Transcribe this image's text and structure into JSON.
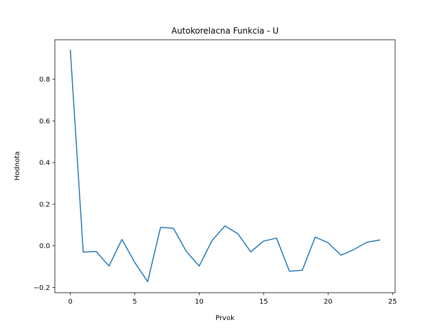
{
  "chart_data": {
    "type": "line",
    "title": "Autokorelacna Funkcia - U",
    "xlabel": "Prvok",
    "ylabel": "Hodnota",
    "xlim": [
      -1.2,
      25.2
    ],
    "ylim": [
      -0.225,
      0.99
    ],
    "xticks": [
      0,
      5,
      10,
      15,
      20,
      25
    ],
    "yticks": [
      -0.2,
      0.0,
      0.2,
      0.4,
      0.6,
      0.8
    ],
    "xtick_labels": [
      "0",
      "5",
      "10",
      "15",
      "20",
      "25"
    ],
    "ytick_labels": [
      "−0.2",
      "0.0",
      "0.2",
      "0.4",
      "0.6",
      "0.8"
    ],
    "grid": false,
    "series": [
      {
        "color": "#1f77b4",
        "x": [
          0,
          1,
          2,
          3,
          4,
          5,
          6,
          7,
          8,
          9,
          10,
          11,
          12,
          13,
          14,
          15,
          16,
          17,
          18,
          19,
          20,
          21,
          22,
          23,
          24
        ],
        "values": [
          0.94,
          -0.03,
          -0.027,
          -0.097,
          0.031,
          -0.08,
          -0.172,
          0.089,
          0.084,
          -0.027,
          -0.097,
          0.026,
          0.096,
          0.058,
          -0.029,
          0.023,
          0.037,
          -0.122,
          -0.117,
          0.042,
          0.015,
          -0.045,
          -0.018,
          0.017,
          0.028
        ]
      }
    ]
  }
}
